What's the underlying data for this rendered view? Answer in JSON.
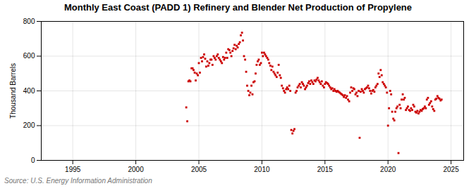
{
  "chart_data": {
    "type": "scatter",
    "title": "Monthly East Coast (PADD 1) Refinery and Blender Net Production of Propylene",
    "ylabel": "Thousand Barrels",
    "source": "Source: U.S. Energy Information Administration",
    "color": "#cc0000",
    "marker": "square",
    "grid": true,
    "xlim": [
      1992.5,
      2026.0
    ],
    "ylim": [
      0,
      800
    ],
    "xticks": [
      1995,
      2000,
      2005,
      2010,
      2015,
      2020,
      2025
    ],
    "yticks": [
      0,
      200,
      400,
      600,
      800
    ],
    "x": [
      2004.0,
      2004.08,
      2004.17,
      2004.25,
      2004.33,
      2004.42,
      2004.5,
      2004.58,
      2004.67,
      2004.75,
      2004.83,
      2004.92,
      2005.0,
      2005.08,
      2005.17,
      2005.25,
      2005.33,
      2005.42,
      2005.5,
      2005.58,
      2005.67,
      2005.75,
      2005.83,
      2005.92,
      2006.0,
      2006.08,
      2006.17,
      2006.25,
      2006.33,
      2006.42,
      2006.5,
      2006.58,
      2006.67,
      2006.75,
      2006.83,
      2006.92,
      2007.0,
      2007.08,
      2007.17,
      2007.25,
      2007.33,
      2007.42,
      2007.5,
      2007.58,
      2007.67,
      2007.75,
      2007.83,
      2007.92,
      2008.0,
      2008.08,
      2008.17,
      2008.25,
      2008.33,
      2008.42,
      2008.5,
      2008.58,
      2008.67,
      2008.75,
      2008.83,
      2008.92,
      2009.0,
      2009.08,
      2009.17,
      2009.25,
      2009.33,
      2009.42,
      2009.5,
      2009.58,
      2009.67,
      2009.75,
      2009.83,
      2009.92,
      2010.0,
      2010.08,
      2010.17,
      2010.25,
      2010.33,
      2010.42,
      2010.5,
      2010.58,
      2010.67,
      2010.75,
      2010.83,
      2010.92,
      2011.0,
      2011.08,
      2011.17,
      2011.25,
      2011.33,
      2011.42,
      2011.5,
      2011.58,
      2011.67,
      2011.75,
      2011.83,
      2011.92,
      2012.0,
      2012.08,
      2012.17,
      2012.25,
      2012.33,
      2012.42,
      2012.5,
      2012.58,
      2012.67,
      2012.75,
      2012.83,
      2012.92,
      2013.0,
      2013.08,
      2013.17,
      2013.25,
      2013.33,
      2013.42,
      2013.5,
      2013.58,
      2013.67,
      2013.75,
      2013.83,
      2013.92,
      2014.0,
      2014.08,
      2014.17,
      2014.25,
      2014.33,
      2014.42,
      2014.5,
      2014.58,
      2014.67,
      2014.75,
      2014.83,
      2014.92,
      2015.0,
      2015.08,
      2015.17,
      2015.25,
      2015.33,
      2015.42,
      2015.5,
      2015.58,
      2015.67,
      2015.75,
      2015.83,
      2015.92,
      2016.0,
      2016.08,
      2016.17,
      2016.25,
      2016.33,
      2016.42,
      2016.5,
      2016.58,
      2016.67,
      2016.75,
      2016.83,
      2016.92,
      2017.0,
      2017.08,
      2017.17,
      2017.25,
      2017.33,
      2017.42,
      2017.5,
      2017.58,
      2017.67,
      2017.75,
      2017.83,
      2017.92,
      2018.0,
      2018.08,
      2018.17,
      2018.25,
      2018.33,
      2018.42,
      2018.5,
      2018.58,
      2018.67,
      2018.75,
      2018.83,
      2018.92,
      2019.0,
      2019.08,
      2019.17,
      2019.25,
      2019.33,
      2019.42,
      2019.5,
      2019.58,
      2019.67,
      2019.75,
      2019.83,
      2019.92,
      2020.0,
      2020.08,
      2020.17,
      2020.25,
      2020.33,
      2020.42,
      2020.5,
      2020.58,
      2020.67,
      2020.75,
      2020.83,
      2020.92,
      2021.0,
      2021.08,
      2021.17,
      2021.25,
      2021.33,
      2021.42,
      2021.5,
      2021.58,
      2021.67,
      2021.75,
      2021.83,
      2021.92,
      2022.0,
      2022.08,
      2022.17,
      2022.25,
      2022.33,
      2022.42,
      2022.5,
      2022.58,
      2022.67,
      2022.75,
      2022.83,
      2022.92,
      2023.0,
      2023.08,
      2023.17,
      2023.25,
      2023.33,
      2023.42,
      2023.5,
      2023.58,
      2023.67,
      2023.75,
      2023.83,
      2023.92,
      2024.0,
      2024.08,
      2024.17,
      2024.25
    ],
    "values": [
      305,
      225,
      455,
      460,
      455,
      530,
      530,
      520,
      505,
      460,
      500,
      490,
      560,
      505,
      590,
      570,
      595,
      610,
      585,
      540,
      570,
      545,
      560,
      580,
      580,
      550,
      600,
      590,
      580,
      600,
      610,
      590,
      580,
      570,
      560,
      595,
      580,
      590,
      620,
      590,
      640,
      635,
      620,
      600,
      630,
      645,
      665,
      640,
      660,
      650,
      670,
      680,
      720,
      735,
      690,
      600,
      580,
      510,
      430,
      400,
      375,
      390,
      430,
      380,
      450,
      455,
      500,
      550,
      570,
      580,
      550,
      560,
      620,
      600,
      620,
      610,
      600,
      590,
      580,
      560,
      545,
      520,
      540,
      510,
      500,
      490,
      480,
      505,
      550,
      490,
      475,
      430,
      415,
      400,
      390,
      410,
      420,
      410,
      430,
      400,
      175,
      155,
      170,
      180,
      390,
      400,
      420,
      430,
      440,
      420,
      450,
      440,
      430,
      410,
      420,
      430,
      445,
      455,
      440,
      460,
      450,
      440,
      460,
      455,
      465,
      475,
      460,
      450,
      440,
      455,
      430,
      420,
      440,
      450,
      445,
      440,
      430,
      420,
      410,
      415,
      400,
      410,
      400,
      395,
      400,
      395,
      390,
      385,
      380,
      375,
      365,
      375,
      360,
      370,
      350,
      340,
      390,
      420,
      400,
      415,
      410,
      380,
      390,
      370,
      400,
      130,
      395,
      410,
      400,
      390,
      410,
      415,
      420,
      430,
      415,
      400,
      385,
      400,
      405,
      395,
      420,
      430,
      440,
      500,
      480,
      520,
      490,
      450,
      440,
      430,
      420,
      390,
      200,
      300,
      400,
      380,
      280,
      240,
      230,
      280,
      300,
      310,
      42,
      320,
      300,
      350,
      380,
      350,
      360,
      290,
      300,
      310,
      290,
      285,
      300,
      290,
      320,
      310,
      280,
      275,
      285,
      270,
      280,
      290,
      285,
      295,
      300,
      310,
      300,
      350,
      360,
      320,
      330,
      340,
      310,
      295,
      285,
      350,
      355,
      370,
      360,
      355,
      345,
      350
    ]
  }
}
